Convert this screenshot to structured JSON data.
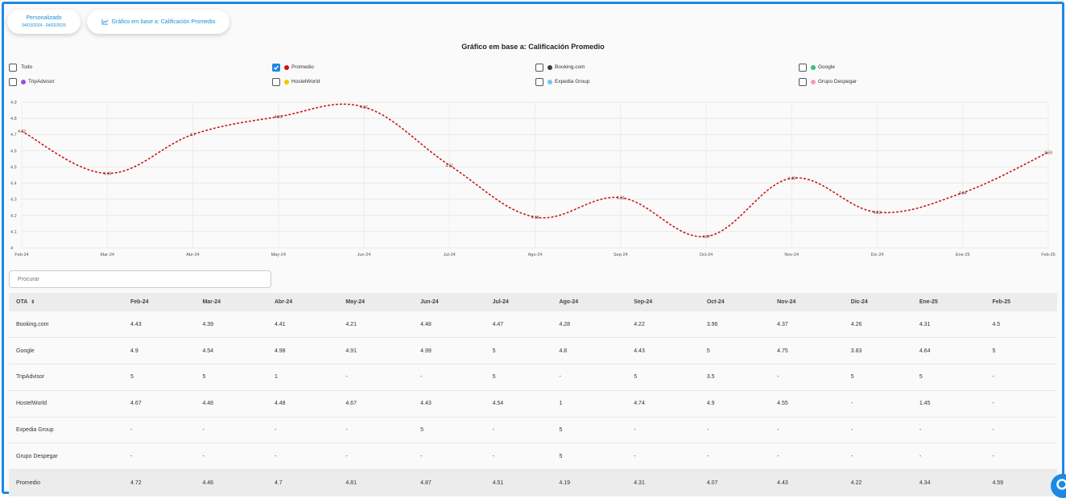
{
  "date_pill": {
    "label": "Personalizado",
    "range": "04/03/2024 - 04/02/2025"
  },
  "base_pill": {
    "label": "Gráfico em base a: Calificación Promedio"
  },
  "legend": [
    {
      "label": "Todo",
      "checked": false,
      "color": null
    },
    {
      "label": "Promedio",
      "checked": true,
      "color": "#cc1111"
    },
    {
      "label": "Booking.com",
      "checked": false,
      "color": "#333d4a"
    },
    {
      "label": "Google",
      "checked": false,
      "color": "#2dc37a"
    },
    {
      "label": "TripAdvisor",
      "checked": false,
      "color": "#9b4de8"
    },
    {
      "label": "HostelWorld",
      "checked": false,
      "color": "#f5c400"
    },
    {
      "label": "Expedia Group",
      "checked": false,
      "color": "#7cc0ef"
    },
    {
      "label": "Grupo Despegar",
      "checked": false,
      "color": "#f49ac6"
    }
  ],
  "chart_data": {
    "type": "line",
    "title": "Gráfico em base a: Calificación Promedio",
    "x": [
      "Feb-24",
      "Mar-24",
      "Abr-24",
      "May-24",
      "Jun-24",
      "Jul-24",
      "Ago-24",
      "Sep-24",
      "Oct-24",
      "Nov-24",
      "Dic-24",
      "Ene-25",
      "Feb-25"
    ],
    "series": [
      {
        "name": "Promedio",
        "color": "#cc1111",
        "values": [
          4.72,
          4.46,
          4.7,
          4.81,
          4.87,
          4.51,
          4.19,
          4.31,
          4.07,
          4.43,
          4.22,
          4.34,
          4.59
        ]
      }
    ],
    "yticks": [
      "4",
      "4.1",
      "4.2",
      "4.3",
      "4.4",
      "4.5",
      "4.6",
      "4.7",
      "4.8",
      "4.9"
    ],
    "ylim": [
      4,
      4.9
    ],
    "line_style": "dotted",
    "grid": true
  },
  "search": {
    "placeholder": "Procurar"
  },
  "table": {
    "headers": [
      "OTA",
      "Feb-24",
      "Mar-24",
      "Abr-24",
      "May-24",
      "Jun-24",
      "Jul-24",
      "Ago-24",
      "Sep-24",
      "Oct-24",
      "Nov-24",
      "Dic-24",
      "Ene-25",
      "Feb-25"
    ],
    "sort_icon": "⇕",
    "rows": [
      [
        "Booking.com",
        "4.43",
        "4.39",
        "4.41",
        "4.21",
        "4.48",
        "4.47",
        "4.28",
        "4.22",
        "3.96",
        "4.37",
        "4.26",
        "4.31",
        "4.5"
      ],
      [
        "Google",
        "4.9",
        "4.54",
        "4.98",
        "4.91",
        "4.99",
        "5",
        "4.8",
        "4.43",
        "5",
        "4.75",
        "3.83",
        "4.64",
        "5"
      ],
      [
        "TripAdvisor",
        "5",
        "5",
        "1",
        "-",
        "-",
        "5",
        "-",
        "5",
        "3.5",
        "-",
        "5",
        "5",
        "-"
      ],
      [
        "HostelWorld",
        "4.67",
        "4.48",
        "4.48",
        "4.67",
        "4.43",
        "4.54",
        "1",
        "4.74",
        "4.9",
        "4.55",
        "-",
        "1.45",
        "-"
      ],
      [
        "Expedia Group",
        "-",
        "-",
        "-",
        "-",
        "5",
        "-",
        "5",
        "-",
        "-",
        "-",
        "-",
        "-",
        "-"
      ],
      [
        "Grupo Despegar",
        "-",
        "-",
        "-",
        "-",
        "-",
        "-",
        "5",
        "-",
        "-",
        "-",
        "-",
        "-",
        "-"
      ]
    ],
    "footer": [
      "Promedio",
      "4.72",
      "4.46",
      "4.7",
      "4.81",
      "4.87",
      "4.51",
      "4.19",
      "4.31",
      "4.07",
      "4.43",
      "4.22",
      "4.34",
      "4.59"
    ]
  }
}
